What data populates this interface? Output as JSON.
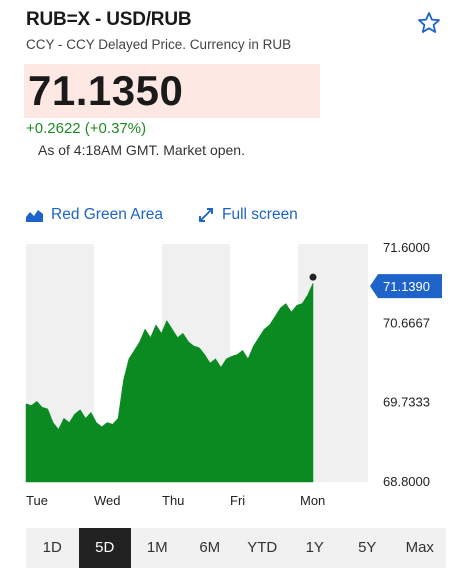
{
  "header": {
    "title": "RUB=X - USD/RUB",
    "subtitle": "CCY - CCY Delayed Price. Currency in RUB"
  },
  "quote": {
    "price": "71.1350",
    "change": "+0.2622 (+0.37%)",
    "as_of": "As of 4:18AM GMT. Market open."
  },
  "toolbar": {
    "chart_style_label": "Red Green Area",
    "fullscreen_label": "Full screen"
  },
  "chart_data": {
    "type": "area",
    "x_labels": [
      "Tue",
      "Wed",
      "Thu",
      "Fri",
      "Mon"
    ],
    "y_ticks": [
      "71.6000",
      "70.6667",
      "69.7333",
      "68.8000"
    ],
    "ylim": [
      68.8,
      71.6
    ],
    "current_value_label": "71.1390",
    "current_value": 71.139,
    "grid": true,
    "area_color": "#0c8a22",
    "series": [
      {
        "values": [
          69.72,
          69.7,
          69.75,
          69.68,
          69.66,
          69.5,
          69.42,
          69.55,
          69.5,
          69.6,
          69.65,
          69.55,
          69.62,
          69.5,
          69.45,
          69.5,
          69.48,
          69.55,
          70.0,
          70.25,
          70.35,
          70.45,
          70.6,
          70.5,
          70.65,
          70.55,
          70.7,
          70.6,
          70.5,
          70.55,
          70.45,
          70.4,
          70.38,
          70.3,
          70.2,
          70.25,
          70.15,
          70.25,
          70.28,
          70.3,
          70.35,
          70.25,
          70.4,
          70.5,
          70.6,
          70.65,
          70.75,
          70.85,
          70.9,
          70.8,
          70.88,
          70.9,
          71.0,
          71.14
        ]
      }
    ]
  },
  "ranges": {
    "items": [
      "1D",
      "5D",
      "1M",
      "6M",
      "YTD",
      "1Y",
      "5Y",
      "Max"
    ],
    "selected": "5D"
  }
}
